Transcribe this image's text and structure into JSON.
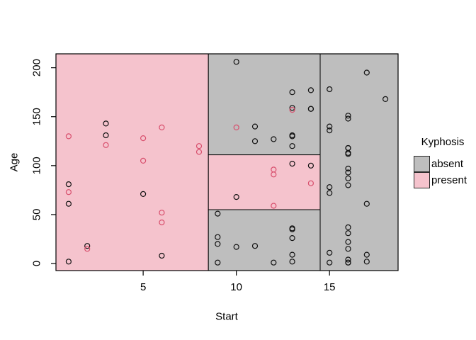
{
  "figure": {
    "background": "#ffffff"
  },
  "chart_data": {
    "type": "scatter",
    "title": "",
    "xlabel": "Start",
    "ylabel": "Age",
    "xlim": [
      0.32,
      18.68
    ],
    "ylim": [
      -7.2,
      214.2
    ],
    "xticks": [
      5,
      10,
      15
    ],
    "yticks": [
      0,
      50,
      100,
      150,
      200
    ],
    "grid": "off",
    "legend": {
      "title": "Kyphosis",
      "position": "right",
      "entries": [
        {
          "label": "absent",
          "color": "#bebebe"
        },
        {
          "label": "present",
          "color": "#f5c3cd"
        }
      ]
    },
    "region_colors": {
      "absent": "#bebebe",
      "present": "#f5c3cd"
    },
    "region_border_color": "#000000",
    "regions": [
      {
        "x0": 0.32,
        "x1": 8.5,
        "y0": -7.2,
        "y1": 214.2,
        "class": "present"
      },
      {
        "x0": 8.5,
        "x1": 14.5,
        "y0": 111,
        "y1": 214.2,
        "class": "absent"
      },
      {
        "x0": 8.5,
        "x1": 14.5,
        "y0": 55,
        "y1": 111,
        "class": "present"
      },
      {
        "x0": 8.5,
        "x1": 14.5,
        "y0": -7.2,
        "y1": 55,
        "class": "absent"
      },
      {
        "x0": 14.5,
        "x1": 18.68,
        "y0": -7.2,
        "y1": 214.2,
        "class": "absent"
      }
    ],
    "series": [
      {
        "name": "absent",
        "point_color": "#111111",
        "points": [
          [
            5,
            71
          ],
          [
            14,
            158
          ],
          [
            1,
            2
          ],
          [
            15,
            1
          ],
          [
            16,
            1
          ],
          [
            17,
            61
          ],
          [
            16,
            37
          ],
          [
            16,
            113
          ],
          [
            16,
            148
          ],
          [
            2,
            18
          ],
          [
            12,
            1
          ],
          [
            18,
            168
          ],
          [
            16,
            1
          ],
          [
            15,
            78
          ],
          [
            13,
            175
          ],
          [
            16,
            80
          ],
          [
            9,
            27
          ],
          [
            16,
            22
          ],
          [
            3,
            131
          ],
          [
            13,
            9
          ],
          [
            6,
            8
          ],
          [
            14,
            100
          ],
          [
            16,
            4
          ],
          [
            16,
            151
          ],
          [
            16,
            31
          ],
          [
            11,
            125
          ],
          [
            13,
            130
          ],
          [
            16,
            112
          ],
          [
            11,
            140
          ],
          [
            16,
            93
          ],
          [
            9,
            1
          ],
          [
            9,
            20
          ],
          [
            13,
            35
          ],
          [
            3,
            143
          ],
          [
            1,
            61
          ],
          [
            16,
            97
          ],
          [
            15,
            136
          ],
          [
            13,
            131
          ],
          [
            14,
            177
          ],
          [
            10,
            68
          ],
          [
            17,
            9
          ],
          [
            17,
            2
          ],
          [
            15,
            140
          ],
          [
            15,
            72
          ],
          [
            13,
            2
          ],
          [
            9,
            51
          ],
          [
            13,
            102
          ],
          [
            1,
            81
          ],
          [
            16,
            118
          ],
          [
            16,
            118
          ],
          [
            10,
            17
          ],
          [
            17,
            195
          ],
          [
            13,
            159
          ],
          [
            11,
            18
          ],
          [
            16,
            15
          ],
          [
            14,
            158
          ],
          [
            12,
            127
          ],
          [
            16,
            87
          ],
          [
            10,
            206
          ],
          [
            15,
            11
          ],
          [
            15,
            178
          ],
          [
            13,
            26
          ],
          [
            13,
            120
          ],
          [
            13,
            36
          ]
        ]
      },
      {
        "name": "present",
        "point_color": "#d84f6d",
        "points": [
          [
            5,
            128
          ],
          [
            12,
            59
          ],
          [
            14,
            82
          ],
          [
            5,
            105
          ],
          [
            12,
            96
          ],
          [
            2,
            15
          ],
          [
            6,
            52
          ],
          [
            12,
            91
          ],
          [
            1,
            73
          ],
          [
            10,
            139
          ],
          [
            3,
            121
          ],
          [
            6,
            139
          ],
          [
            8,
            120
          ],
          [
            1,
            130
          ],
          [
            8,
            114
          ],
          [
            13,
            157
          ],
          [
            6,
            42
          ]
        ]
      }
    ]
  }
}
